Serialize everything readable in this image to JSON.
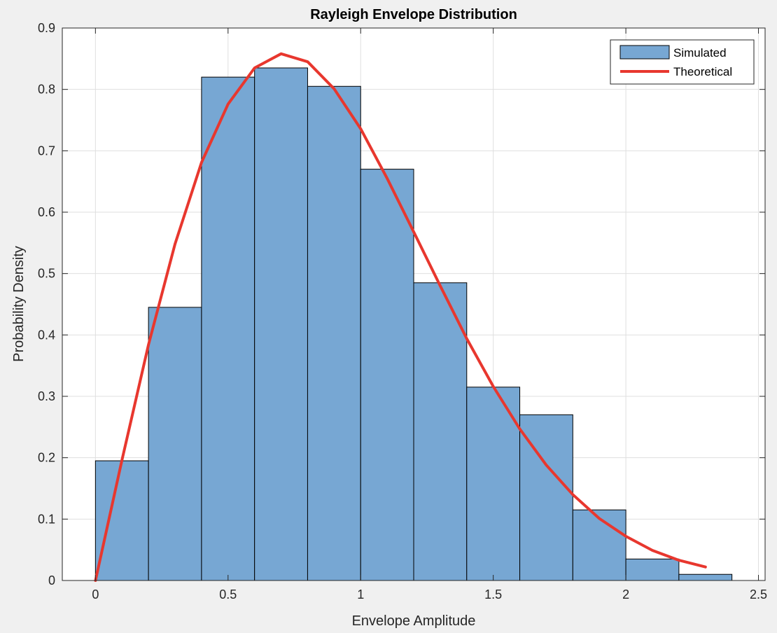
{
  "chart_data": {
    "type": "bar",
    "title": "Rayleigh Envelope Distribution",
    "xlabel": "Envelope Amplitude",
    "ylabel": "Probability Density",
    "xlim": [
      -0.125,
      2.525
    ],
    "ylim": [
      0,
      0.9
    ],
    "x_ticks": [
      0,
      0.5,
      1,
      1.5,
      2,
      2.5
    ],
    "x_tick_labels": [
      "0",
      "0.5",
      "1",
      "1.5",
      "2",
      "2.5"
    ],
    "y_ticks": [
      0,
      0.1,
      0.2,
      0.3,
      0.4,
      0.5,
      0.6,
      0.7,
      0.8,
      0.9
    ],
    "y_tick_labels": [
      "0",
      "0.1",
      "0.2",
      "0.3",
      "0.4",
      "0.5",
      "0.6",
      "0.7",
      "0.8",
      "0.9"
    ],
    "grid": true,
    "legend_position": "top-right",
    "series": [
      {
        "name": "Simulated",
        "type": "histogram",
        "color": "#77a7d3",
        "edge_color": "#000000",
        "bins": [
          {
            "x0": 0.0,
            "x1": 0.2,
            "value": 0.195
          },
          {
            "x0": 0.2,
            "x1": 0.4,
            "value": 0.445
          },
          {
            "x0": 0.4,
            "x1": 0.6,
            "value": 0.82
          },
          {
            "x0": 0.6,
            "x1": 0.8,
            "value": 0.835
          },
          {
            "x0": 0.8,
            "x1": 1.0,
            "value": 0.805
          },
          {
            "x0": 1.0,
            "x1": 1.2,
            "value": 0.67
          },
          {
            "x0": 1.2,
            "x1": 1.4,
            "value": 0.485
          },
          {
            "x0": 1.4,
            "x1": 1.6,
            "value": 0.315
          },
          {
            "x0": 1.6,
            "x1": 1.8,
            "value": 0.27
          },
          {
            "x0": 1.8,
            "x1": 2.0,
            "value": 0.115
          },
          {
            "x0": 2.0,
            "x1": 2.2,
            "value": 0.035
          },
          {
            "x0": 2.2,
            "x1": 2.4,
            "value": 0.01
          }
        ]
      },
      {
        "name": "Theoretical",
        "type": "line",
        "color": "#e8372e",
        "x": [
          0,
          0.1,
          0.2,
          0.3,
          0.4,
          0.5,
          0.6,
          0.7,
          0.8,
          0.9,
          1.0,
          1.1,
          1.2,
          1.3,
          1.4,
          1.5,
          1.6,
          1.7,
          1.8,
          1.9,
          2.0,
          2.1,
          2.2,
          2.3
        ],
        "y": [
          0,
          0.196,
          0.384,
          0.548,
          0.681,
          0.776,
          0.835,
          0.858,
          0.845,
          0.801,
          0.736,
          0.655,
          0.568,
          0.48,
          0.394,
          0.316,
          0.247,
          0.188,
          0.14,
          0.101,
          0.072,
          0.049,
          0.033,
          0.022
        ]
      }
    ]
  }
}
